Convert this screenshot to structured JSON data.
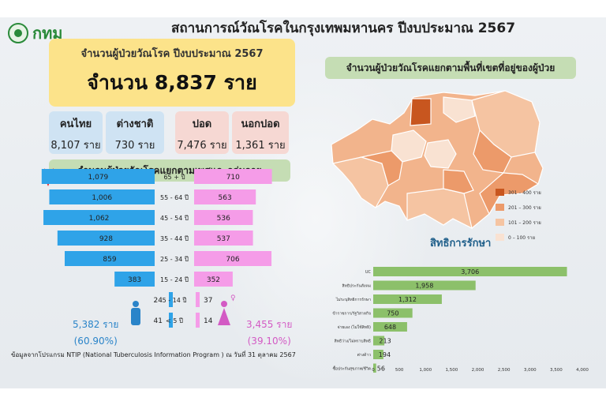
{
  "header": {
    "logo_text": "กทม",
    "title": "สถานการณ์วัณโรคในกรุงเทพมหานคร ปีงบประมาณ 2567"
  },
  "total": {
    "label": "จำนวนผู้ป่วยวัณโรค ปีงบประมาณ 2567",
    "value": "จำนวน 8,837 ราย"
  },
  "stats": [
    {
      "label": "คนไทย",
      "value": "8,107 ราย"
    },
    {
      "label": "ต่างชาติ",
      "value": "730 ราย"
    },
    {
      "label": "ปอด",
      "value": "7,476 ราย"
    },
    {
      "label": "นอกปอด",
      "value": "1,361 ราย"
    }
  ],
  "age_title": "จำนวนผู้ป่วยวัณโรคแยกตามเพศและกลุ่มอายุ",
  "map_title": "จำนวนผู้ป่วยวัณโรคแยกตามพื้นที่เขตที่อยู่ของผู้ป่วย",
  "gender": {
    "male_total": "5,382 ราย",
    "male_pct": "(60.90%)",
    "female_total": "3,455 ราย",
    "female_pct": "(39.10%)"
  },
  "source": "ข้อมูลจากโปรแกรม NTIP (National Tuberculosis Information Program ) ณ  วันที่ 31 ตุลาคม 2567",
  "colors": {
    "male": "#2fa3e8",
    "female": "#f59ce8",
    "rights_bar": "#8cc06a",
    "map_legend": [
      "#c8561f",
      "#ec9a6a",
      "#f5c4a2",
      "#f9e2d2"
    ]
  },
  "chart_data": [
    {
      "type": "bar",
      "categories": [
        "65 + ปี",
        "55 - 64 ปี",
        "45 - 54 ปี",
        "35 - 44 ปี",
        "25 - 34 ปี",
        "15 - 24 ปี",
        "5 - 14 ปี",
        "< 5 ปี"
      ],
      "series": [
        {
          "values": [
            1079,
            1006,
            1062,
            928,
            859,
            383,
            24,
            41
          ],
          "labels": [
            "1,079",
            "1,006",
            "1,062",
            "928",
            "859",
            "383",
            "24",
            "41"
          ]
        },
        {
          "values": [
            710,
            563,
            536,
            537,
            706,
            352,
            37,
            14
          ],
          "labels": [
            "710",
            "563",
            "536",
            "537",
            "706",
            "352",
            "37",
            "14"
          ]
        }
      ]
    },
    {
      "type": "bar",
      "title": "สิทธิการรักษา",
      "categories": [
        "UC",
        "สิทธิประกันสังคม",
        "ไม่ระบุสิทธิการรักษา",
        "ข้าราชการ/รัฐวิสาหกิจ",
        "จ่ายเอง (ไม่ใช้สิทธิ)",
        "สิทธิว่าง/ไม่ทราบสิทธิ",
        "ต่างด้าว",
        "ซื้อประกันสุขภาพ/ชีวิต"
      ],
      "values": [
        3706,
        1958,
        1312,
        750,
        648,
        213,
        194,
        56
      ],
      "value_labels": [
        "3,706",
        "1,958",
        "1,312",
        "750",
        "648",
        "213",
        "194",
        "56"
      ],
      "xlim": [
        0,
        4000
      ],
      "xticks": [
        "0",
        "500",
        "1,000",
        "1,500",
        "2,000",
        "2,500",
        "3,000",
        "3,500",
        "4,000"
      ]
    },
    {
      "type": "heatmap",
      "legend": [
        "301 – 400 ราย",
        "201 – 300 ราย",
        "101 – 200 ราย",
        "0 – 100 ราย"
      ]
    }
  ]
}
